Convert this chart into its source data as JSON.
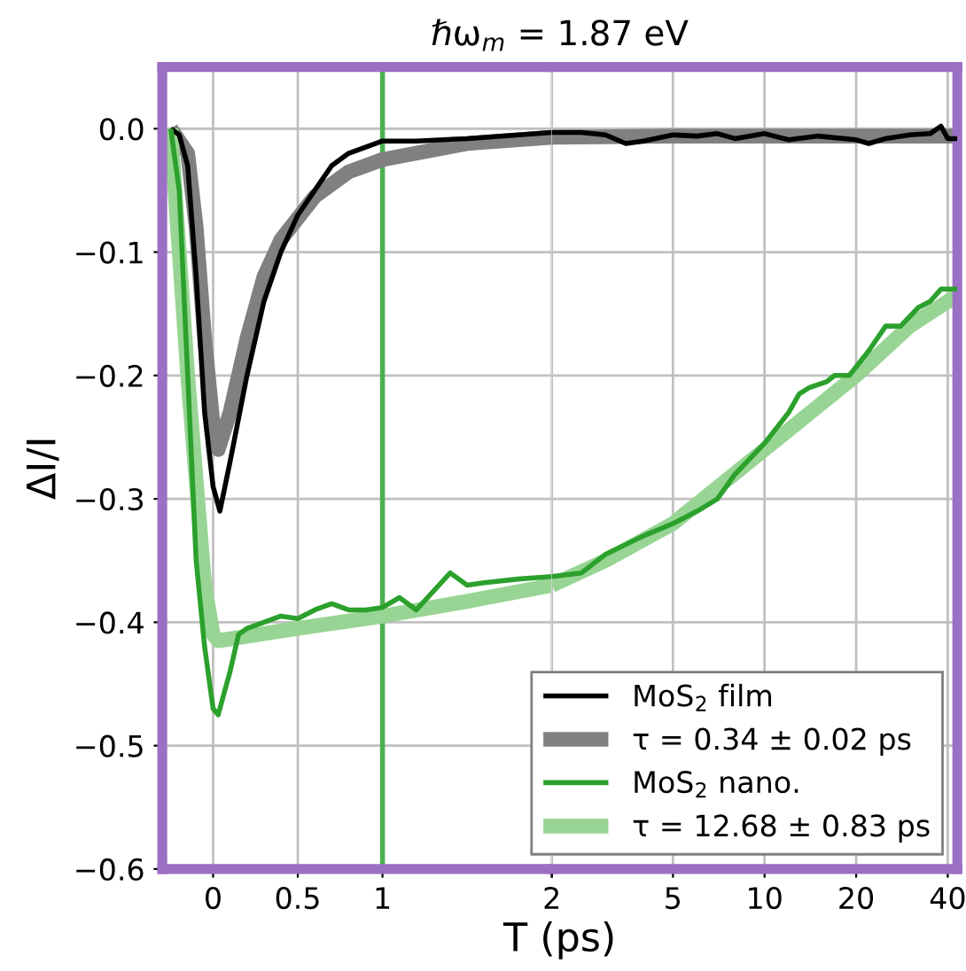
{
  "chart_data": [
    {
      "type": "line",
      "title": "ℏω$_{m}$ = 1.87 eV",
      "xlabel": "T (ps)",
      "ylabel": "ΔI/I",
      "xlim": [
        -0.3,
        2
      ],
      "xticks": [
        0,
        0.5,
        1,
        2
      ],
      "ylim": [
        -0.6,
        0.05
      ],
      "yticks": [
        {
          "value": 0,
          "label": "0.0"
        },
        {
          "value": -0.1,
          "label": "−0.1"
        },
        {
          "value": -0.2,
          "label": "−0.2"
        },
        {
          "value": -0.3,
          "label": "−0.3"
        },
        {
          "value": -0.4,
          "label": "−0.4"
        },
        {
          "value": -0.5,
          "label": "−0.5"
        },
        {
          "value": -0.6,
          "label": "−0.6"
        }
      ],
      "grid": true,
      "marker": "none",
      "line_style": "solid",
      "ref_lines": [
        {
          "axis": "x",
          "value": 1,
          "color": "#4caf50"
        }
      ],
      "series": [
        {
          "color": "#000000",
          "x": [
            -0.25,
            -0.2,
            -0.15,
            -0.1,
            -0.05,
            0.0,
            0.04,
            0.1,
            0.2,
            0.3,
            0.4,
            0.5,
            0.6,
            0.7,
            0.8,
            0.9,
            1.0,
            1.2,
            1.5,
            2.0
          ],
          "values": [
            0.0,
            -0.005,
            -0.03,
            -0.12,
            -0.23,
            -0.29,
            -0.31,
            -0.27,
            -0.2,
            -0.14,
            -0.1,
            -0.07,
            -0.05,
            -0.03,
            -0.02,
            -0.015,
            -0.01,
            -0.01,
            -0.008,
            -0.003
          ]
        },
        {
          "color": "#808080",
          "x": [
            -0.25,
            -0.15,
            -0.1,
            -0.05,
            0.0,
            0.03,
            0.1,
            0.2,
            0.3,
            0.4,
            0.6,
            0.8,
            1,
            1.5,
            2
          ],
          "values": [
            0,
            -0.02,
            -0.08,
            -0.17,
            -0.24,
            -0.26,
            -0.23,
            -0.17,
            -0.12,
            -0.09,
            -0.055,
            -0.035,
            -0.025,
            -0.012,
            -0.007
          ]
        },
        {
          "color": "#2ca02c",
          "x": [
            -0.25,
            -0.2,
            -0.15,
            -0.1,
            -0.05,
            0.0,
            0.03,
            0.1,
            0.15,
            0.2,
            0.3,
            0.4,
            0.5,
            0.6,
            0.7,
            0.8,
            0.9,
            1.0,
            1.1,
            1.2,
            1.4,
            1.5,
            1.6,
            1.8,
            2.0
          ],
          "values": [
            0,
            -0.05,
            -0.2,
            -0.35,
            -0.42,
            -0.47,
            -0.475,
            -0.44,
            -0.41,
            -0.405,
            -0.4,
            -0.395,
            -0.397,
            -0.39,
            -0.385,
            -0.39,
            -0.39,
            -0.388,
            -0.38,
            -0.39,
            -0.36,
            -0.37,
            -0.368,
            -0.365,
            -0.363
          ]
        },
        {
          "color": "#98d594",
          "x": [
            -0.25,
            -0.15,
            -0.05,
            0.0,
            0.03,
            0.5,
            1,
            1.5,
            2
          ],
          "values": [
            0,
            -0.2,
            -0.37,
            -0.41,
            -0.415,
            -0.405,
            -0.395,
            -0.383,
            -0.37
          ]
        }
      ]
    },
    {
      "type": "line",
      "log": "x",
      "xlim": [
        2,
        43
      ],
      "xticks": [
        {
          "value": 2,
          "label": null
        },
        5,
        10,
        20,
        40
      ],
      "ylim": [
        -0.6,
        0.05
      ],
      "yticks": [
        0,
        -0.1,
        -0.2,
        -0.3,
        -0.4,
        -0.5,
        -0.6
      ],
      "tick_labels": "x",
      "grid": true,
      "legend": "bottom right",
      "marker": "none",
      "line_style": "solid",
      "series": [
        {
          "name": "MoS$_{2}$ film",
          "color": "#000000",
          "x": [
            2.0,
            2.5,
            3,
            3.5,
            4,
            5,
            6,
            7,
            8,
            10,
            12,
            15,
            20,
            22,
            25,
            30,
            35,
            38,
            40,
            43
          ],
          "values": [
            -0.003,
            -0.003,
            -0.005,
            -0.012,
            -0.01,
            -0.005,
            -0.006,
            -0.004,
            -0.008,
            -0.004,
            -0.009,
            -0.006,
            -0.009,
            -0.012,
            -0.008,
            -0.005,
            -0.004,
            0.002,
            -0.008,
            -0.008
          ]
        },
        {
          "name": "τ = 0.34 ± 0.02 ps",
          "color": "#808080",
          "x": [
            2,
            5,
            43
          ],
          "values": [
            -0.007,
            -0.006,
            -0.006
          ]
        },
        {
          "name": "MoS$_{2}$ nano.",
          "color": "#2ca02c",
          "x": [
            2.0,
            2.5,
            3,
            4,
            5,
            6,
            7,
            8,
            10,
            12,
            13,
            14,
            16,
            17,
            19,
            22,
            25,
            28,
            32,
            35,
            38,
            40,
            43
          ],
          "values": [
            -0.363,
            -0.36,
            -0.345,
            -0.33,
            -0.32,
            -0.31,
            -0.3,
            -0.28,
            -0.255,
            -0.23,
            -0.215,
            -0.21,
            -0.205,
            -0.2,
            -0.2,
            -0.18,
            -0.16,
            -0.16,
            -0.145,
            -0.14,
            -0.13,
            -0.13,
            -0.13
          ]
        },
        {
          "name": "τ = 12.68 ± 0.83 ps",
          "color": "#98d594",
          "x": [
            2,
            3,
            5,
            10,
            20,
            30,
            43
          ],
          "values": [
            -0.37,
            -0.35,
            -0.32,
            -0.26,
            -0.2,
            -0.16,
            -0.135
          ]
        }
      ]
    }
  ]
}
